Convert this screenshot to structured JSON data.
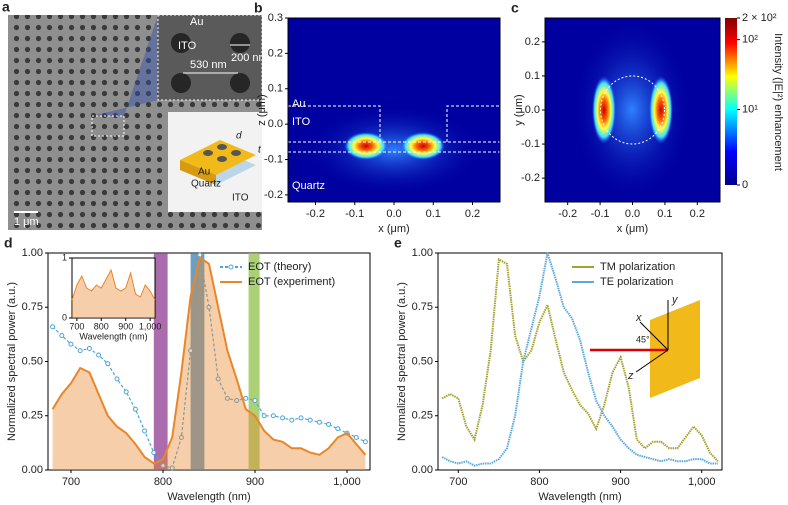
{
  "panel_a": {
    "label": "a",
    "labels": [
      "Au",
      "ITO",
      "200 nm",
      "530 nm",
      "1 μm",
      "Au",
      "Quartz",
      "ITO",
      "d",
      "t"
    ]
  },
  "chart_data": [
    {
      "type": "heatmap",
      "panel_label": "b",
      "xlabel": "x (μm)",
      "ylabel": "z (μm)",
      "xlim": [
        -0.27,
        0.27
      ],
      "xticks": [
        -0.2,
        -0.1,
        {
          "value": 0,
          "label": "0.0"
        },
        0.1,
        0.2
      ],
      "ylim": [
        -0.22,
        0.3
      ],
      "yticks": [
        0.3,
        0.2,
        0.1,
        {
          "value": 0,
          "label": "0.0"
        },
        -0.1,
        -0.2
      ],
      "annotations": [
        "Au",
        "ITO",
        "Quartz"
      ]
    },
    {
      "type": "heatmap",
      "panel_label": "c",
      "xlabel": "x (μm)",
      "ylabel": "y (μm)",
      "xlim": [
        -0.27,
        0.27
      ],
      "xticks": [
        -0.2,
        -0.1,
        {
          "value": 0,
          "label": "0.0"
        },
        0.1,
        0.2
      ],
      "ylim": [
        -0.27,
        0.27
      ],
      "yticks": [
        0.2,
        0.1,
        {
          "value": 0,
          "label": "0.0"
        },
        -0.1,
        -0.2
      ],
      "colorbar": {
        "label": "Intensity (|E|²) enhancement",
        "scale": "log1p",
        "lim": [
          0,
          200
        ],
        "ticks": [
          {
            "value": 200,
            "label": "2 × 10²"
          },
          {
            "value": 100,
            "label": "10²"
          },
          {
            "value": 10,
            "label": "10¹"
          },
          0
        ]
      }
    },
    {
      "type": "line",
      "panel_label": "d",
      "xlabel": "Wavelength (nm)",
      "ylabel": "Normalized spectral power (a.u.)",
      "xlim": [
        675,
        1025
      ],
      "xticks": [
        700,
        800,
        900,
        {
          "value": 1000,
          "label": "1,000"
        }
      ],
      "ylim": [
        0,
        1
      ],
      "yticks": [
        {
          "value": 0,
          "label": "0.00"
        },
        {
          "value": 0.25,
          "label": "0.25"
        },
        {
          "value": 0.5,
          "label": "0.50"
        },
        {
          "value": 0.75,
          "label": "0.75"
        },
        {
          "value": 1,
          "label": "1.00"
        }
      ],
      "legend": "upper right",
      "x": [
        680,
        690,
        700,
        710,
        720,
        730,
        740,
        750,
        760,
        770,
        780,
        790,
        800,
        810,
        820,
        830,
        840,
        850,
        860,
        870,
        880,
        890,
        900,
        910,
        920,
        930,
        940,
        950,
        960,
        970,
        980,
        990,
        1000,
        1010,
        1020
      ],
      "series": [
        {
          "name": "EOT (theory)",
          "color": "#4ea5d9",
          "marker": true,
          "values": [
            0.66,
            0.62,
            0.58,
            0.55,
            0.56,
            0.53,
            0.49,
            0.42,
            0.36,
            0.28,
            0.18,
            0.08,
            0.02,
            0.01,
            0.15,
            0.55,
            0.99,
            0.75,
            0.42,
            0.33,
            0.32,
            0.33,
            0.32,
            0.25,
            0.25,
            0.24,
            0.23,
            0.24,
            0.23,
            0.22,
            0.21,
            0.19,
            0.17,
            0.15,
            0.13
          ]
        },
        {
          "name": "EOT (experiment)",
          "color": "#e8862a",
          "area": true,
          "values": [
            0.28,
            0.35,
            0.4,
            0.47,
            0.45,
            0.35,
            0.25,
            0.2,
            0.17,
            0.12,
            0.06,
            0.03,
            0.05,
            0.15,
            0.45,
            0.8,
            0.98,
            0.95,
            0.75,
            0.55,
            0.42,
            0.28,
            0.25,
            0.18,
            0.14,
            0.13,
            0.1,
            0.1,
            0.08,
            0.07,
            0.1,
            0.15,
            0.17,
            0.12,
            0.07
          ]
        }
      ],
      "bands": [
        {
          "from": 790,
          "to": 805,
          "color": "#8e3b91"
        },
        {
          "from": 830,
          "to": 845,
          "color": "#3b7fb0"
        },
        {
          "from": 893,
          "to": 905,
          "color": "#8fc24a"
        }
      ],
      "inset": {
        "xlabel": "Wavelength (nm)",
        "color": "#e8862a",
        "xlim": [
          680,
          1020
        ],
        "ylim": [
          0,
          1
        ],
        "xticks": [
          700,
          800,
          900,
          {
            "value": 1000,
            "label": "1,000"
          }
        ],
        "yticks": [
          0,
          1
        ],
        "x": [
          680,
          700,
          720,
          740,
          760,
          780,
          800,
          820,
          840,
          860,
          880,
          900,
          920,
          940,
          960,
          980,
          1000,
          1020
        ],
        "values": [
          0.3,
          0.55,
          0.7,
          0.5,
          0.45,
          0.55,
          0.5,
          0.65,
          0.8,
          0.5,
          0.45,
          0.5,
          0.75,
          0.4,
          0.35,
          0.55,
          0.45,
          0.3
        ]
      }
    },
    {
      "type": "line",
      "panel_label": "e",
      "xlabel": "Wavelength (nm)",
      "ylabel": "Normalized spectral power (a.u.)",
      "xlim": [
        675,
        1025
      ],
      "xticks": [
        700,
        800,
        900,
        {
          "value": 1000,
          "label": "1,000"
        }
      ],
      "ylim": [
        0,
        1
      ],
      "yticks": [
        {
          "value": 0,
          "label": "0.00"
        },
        {
          "value": 0.25,
          "label": "0.25"
        },
        {
          "value": 0.5,
          "label": "0.50"
        },
        {
          "value": 0.75,
          "label": "0.75"
        },
        {
          "value": 1,
          "label": "1.00"
        }
      ],
      "legend": "upper right",
      "x": [
        680,
        690,
        700,
        710,
        720,
        730,
        740,
        750,
        760,
        770,
        780,
        790,
        800,
        810,
        820,
        830,
        840,
        850,
        860,
        870,
        880,
        890,
        900,
        910,
        920,
        930,
        940,
        950,
        960,
        970,
        980,
        990,
        1000,
        1010,
        1020
      ],
      "series": [
        {
          "name": "TM polarization",
          "color": "#a3a12c",
          "values": [
            0.33,
            0.35,
            0.33,
            0.2,
            0.14,
            0.3,
            0.55,
            0.97,
            0.95,
            0.62,
            0.5,
            0.55,
            0.68,
            0.76,
            0.6,
            0.45,
            0.37,
            0.3,
            0.26,
            0.19,
            0.3,
            0.45,
            0.52,
            0.38,
            0.14,
            0.1,
            0.13,
            0.13,
            0.1,
            0.1,
            0.15,
            0.2,
            0.16,
            0.08,
            0.04
          ]
        },
        {
          "name": "TE polarization",
          "color": "#5aa8dc",
          "values": [
            0.06,
            0.04,
            0.03,
            0.04,
            0.02,
            0.03,
            0.03,
            0.05,
            0.1,
            0.25,
            0.5,
            0.65,
            0.8,
            1,
            0.88,
            0.75,
            0.7,
            0.6,
            0.45,
            0.32,
            0.25,
            0.2,
            0.14,
            0.1,
            0.07,
            0.06,
            0.05,
            0.04,
            0.05,
            0.04,
            0.04,
            0.05,
            0.05,
            0.03,
            0.03
          ]
        }
      ],
      "inset_labels": [
        "x",
        "y",
        "z",
        "45°"
      ]
    }
  ]
}
